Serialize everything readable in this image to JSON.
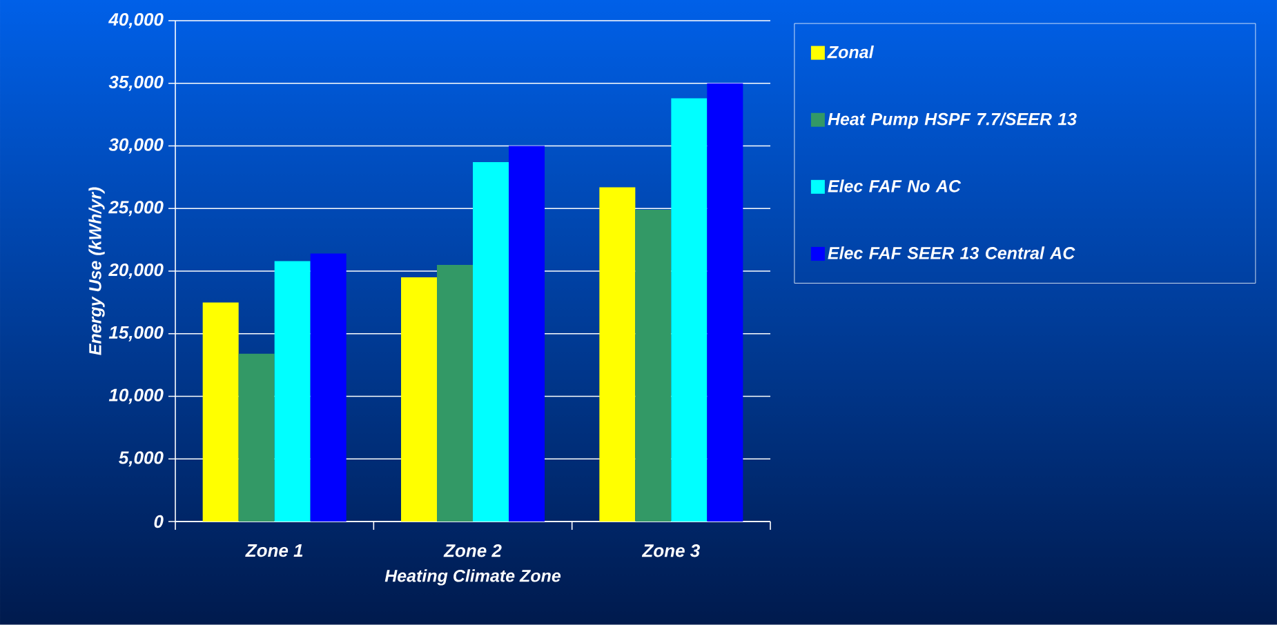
{
  "chart_data": {
    "type": "bar",
    "xlabel": "Heating Climate Zone",
    "ylabel": "Energy Use (kWh/yr)",
    "categories": [
      "Zone 1",
      "Zone 2",
      "Zone 3"
    ],
    "series": [
      {
        "name": "Zonal",
        "color": "#ffff00",
        "values": [
          17500,
          19500,
          26700
        ]
      },
      {
        "name": "Heat Pump HSPF 7.7/SEER 13",
        "color": "#339966",
        "values": [
          13400,
          20500,
          24900
        ]
      },
      {
        "name": "Elec FAF No AC",
        "color": "#00ffff",
        "values": [
          20800,
          28700,
          33800
        ]
      },
      {
        "name": "Elec FAF SEER 13 Central AC",
        "color": "#0000ff",
        "values": [
          21400,
          30000,
          35000
        ]
      }
    ],
    "ylim": [
      0,
      40000
    ],
    "yticks": [
      {
        "value": 0,
        "label": "0"
      },
      {
        "value": 5000,
        "label": "5,000"
      },
      {
        "value": 10000,
        "label": "10,000"
      },
      {
        "value": 15000,
        "label": "15,000"
      },
      {
        "value": 20000,
        "label": "20,000"
      },
      {
        "value": 25000,
        "label": "25,000"
      },
      {
        "value": 30000,
        "label": "30,000"
      },
      {
        "value": 35000,
        "label": "35,000"
      },
      {
        "value": 40000,
        "label": "40,000"
      }
    ],
    "grid": "y",
    "legend": "right"
  }
}
